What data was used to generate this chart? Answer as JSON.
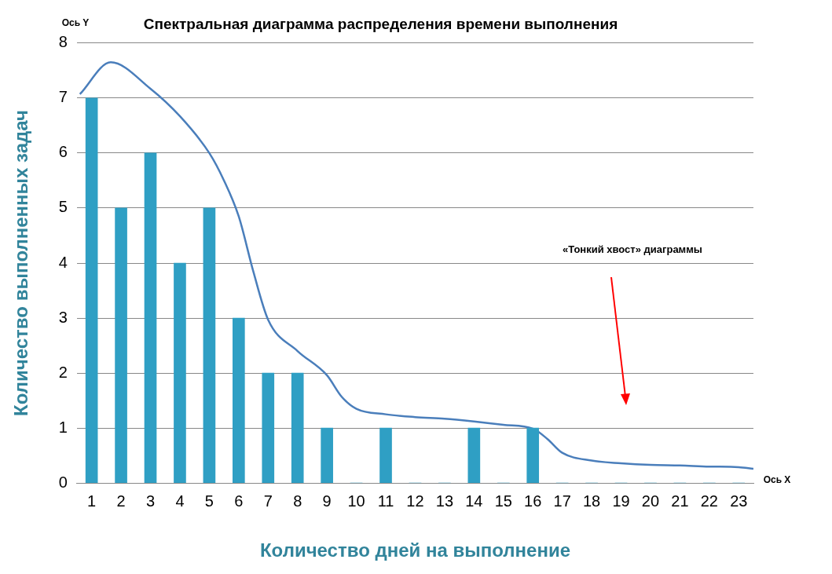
{
  "chart_data": {
    "type": "bar",
    "title": "Спектральная диаграмма распределения времени выполнения",
    "xlabel": "Количество дней на выполнение",
    "ylabel": "Количество выполненных задач",
    "annotations": [
      "Ось Y",
      "Ось X",
      "«Тонкий хвост» диаграммы"
    ],
    "x": [
      1,
      2,
      3,
      4,
      5,
      6,
      7,
      8,
      9,
      10,
      11,
      12,
      13,
      14,
      15,
      16,
      17,
      18,
      19,
      20,
      21,
      22,
      23
    ],
    "series": [
      {
        "color": "#2f9fc4",
        "values": [
          7,
          5,
          6,
          4,
          5,
          3,
          2,
          2,
          1,
          0,
          1,
          0,
          0,
          1,
          0,
          1,
          0,
          0,
          0,
          0,
          0,
          0,
          0
        ]
      },
      {
        "type": "line",
        "color": "#4a7ebb",
        "x": [
          0.6,
          1.65,
          3,
          4,
          5,
          5.5,
          6,
          6.5,
          7,
          8,
          9,
          9.5,
          10,
          11,
          12,
          13,
          14,
          15,
          16,
          16.5,
          17,
          18,
          19,
          20,
          21,
          22,
          23,
          23.5
        ],
        "values": [
          7.07,
          7.65,
          7.17,
          6.67,
          6.0,
          5.5,
          4.85,
          3.84,
          2.97,
          2.4,
          1.96,
          1.57,
          1.35,
          1.25,
          1.2,
          1.17,
          1.12,
          1.06,
          0.99,
          0.8,
          0.55,
          0.41,
          0.36,
          0.33,
          0.32,
          0.3,
          0.29,
          0.26
        ]
      }
    ],
    "xlim": [
      0.5,
      23.5
    ],
    "xticks": [
      1,
      2,
      3,
      4,
      5,
      6,
      7,
      8,
      9,
      10,
      11,
      12,
      13,
      14,
      15,
      16,
      17,
      18,
      19,
      20,
      21,
      22,
      23
    ],
    "ylim": [
      0,
      8
    ],
    "yticks": [
      0,
      1,
      2,
      3,
      4,
      5,
      6,
      7,
      8
    ],
    "grid": "y",
    "legend": false,
    "marker": "none",
    "line_style": "solid"
  }
}
